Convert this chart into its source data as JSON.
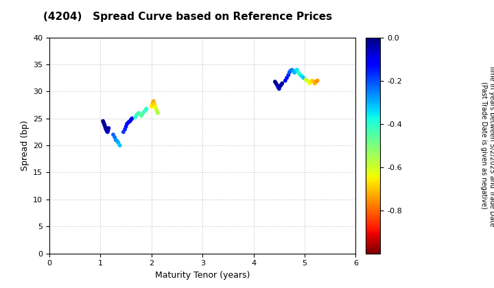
{
  "title": "(4204)   Spread Curve based on Reference Prices",
  "xlabel": "Maturity Tenor (years)",
  "ylabel": "Spread (bp)",
  "colorbar_label_line1": "Time in years between 5/2/2025 and Trade Date",
  "colorbar_label_line2": "(Past Trade Date is given as negative)",
  "xlim": [
    0,
    6
  ],
  "ylim": [
    0,
    40
  ],
  "xticks": [
    0,
    1,
    2,
    3,
    4,
    5,
    6
  ],
  "yticks": [
    0,
    5,
    10,
    15,
    20,
    25,
    30,
    35,
    40
  ],
  "colorbar_ticks": [
    0.0,
    -0.2,
    -0.4,
    -0.6,
    -0.8
  ],
  "clim": [
    -1.0,
    0.0
  ],
  "cluster1": {
    "maturity": [
      1.05,
      1.06,
      1.07,
      1.08,
      1.09,
      1.1,
      1.11,
      1.12,
      1.13,
      1.14,
      1.15,
      1.16,
      1.25,
      1.28,
      1.3,
      1.33,
      1.35,
      1.38,
      1.45,
      1.48,
      1.5,
      1.52,
      1.55,
      1.58,
      1.6,
      1.62,
      1.68,
      1.7,
      1.72,
      1.75,
      1.78,
      1.8,
      1.82,
      1.85,
      1.88,
      1.9,
      2.0,
      2.01,
      2.02,
      2.03,
      2.04,
      2.05,
      2.06,
      2.07,
      2.08,
      2.09,
      2.1,
      2.11,
      2.12
    ],
    "spread": [
      24.5,
      24.3,
      24.0,
      23.8,
      23.5,
      23.2,
      23.0,
      22.8,
      22.6,
      22.5,
      22.8,
      23.2,
      22.0,
      21.5,
      21.0,
      20.8,
      20.5,
      20.0,
      22.5,
      23.0,
      23.5,
      24.0,
      24.3,
      24.5,
      24.8,
      25.0,
      25.2,
      25.5,
      25.8,
      26.0,
      25.8,
      25.5,
      25.8,
      26.2,
      26.5,
      26.8,
      27.2,
      27.5,
      27.8,
      28.0,
      28.2,
      27.8,
      27.5,
      27.2,
      27.0,
      26.8,
      26.5,
      26.3,
      26.0
    ],
    "time": [
      -0.01,
      -0.01,
      -0.02,
      -0.02,
      -0.03,
      -0.03,
      -0.04,
      -0.05,
      -0.06,
      -0.07,
      -0.05,
      -0.04,
      -0.22,
      -0.24,
      -0.26,
      -0.28,
      -0.3,
      -0.32,
      -0.18,
      -0.16,
      -0.14,
      -0.13,
      -0.12,
      -0.11,
      -0.1,
      -0.09,
      -0.38,
      -0.4,
      -0.42,
      -0.44,
      -0.45,
      -0.46,
      -0.45,
      -0.43,
      -0.42,
      -0.4,
      -0.65,
      -0.67,
      -0.69,
      -0.71,
      -0.73,
      -0.7,
      -0.68,
      -0.66,
      -0.64,
      -0.62,
      -0.6,
      -0.58,
      -0.56
    ]
  },
  "cluster2": {
    "maturity": [
      4.42,
      4.44,
      4.46,
      4.48,
      4.5,
      4.52,
      4.54,
      4.56,
      4.62,
      4.65,
      4.68,
      4.7,
      4.72,
      4.75,
      4.78,
      4.8,
      4.82,
      4.85,
      4.88,
      4.9,
      4.92,
      4.95,
      4.98,
      5.02,
      5.05,
      5.08,
      5.1,
      5.12,
      5.15,
      5.18,
      5.2,
      5.22,
      5.25
    ],
    "spread": [
      31.8,
      31.5,
      31.2,
      30.8,
      30.5,
      31.0,
      31.2,
      31.5,
      32.0,
      32.5,
      33.0,
      33.5,
      33.8,
      34.0,
      33.8,
      33.5,
      33.8,
      34.0,
      33.5,
      33.2,
      33.0,
      32.8,
      32.5,
      32.2,
      32.0,
      31.8,
      31.5,
      31.8,
      32.0,
      31.8,
      31.5,
      31.8,
      32.0
    ],
    "time": [
      -0.02,
      -0.03,
      -0.04,
      -0.05,
      -0.06,
      -0.04,
      -0.03,
      -0.02,
      -0.12,
      -0.14,
      -0.16,
      -0.2,
      -0.22,
      -0.25,
      -0.28,
      -0.3,
      -0.32,
      -0.35,
      -0.38,
      -0.4,
      -0.38,
      -0.35,
      -0.32,
      -0.58,
      -0.6,
      -0.62,
      -0.64,
      -0.66,
      -0.68,
      -0.7,
      -0.72,
      -0.74,
      -0.76
    ]
  },
  "background_color": "#ffffff",
  "grid_color": "#bbbbbb",
  "marker_size": 18
}
